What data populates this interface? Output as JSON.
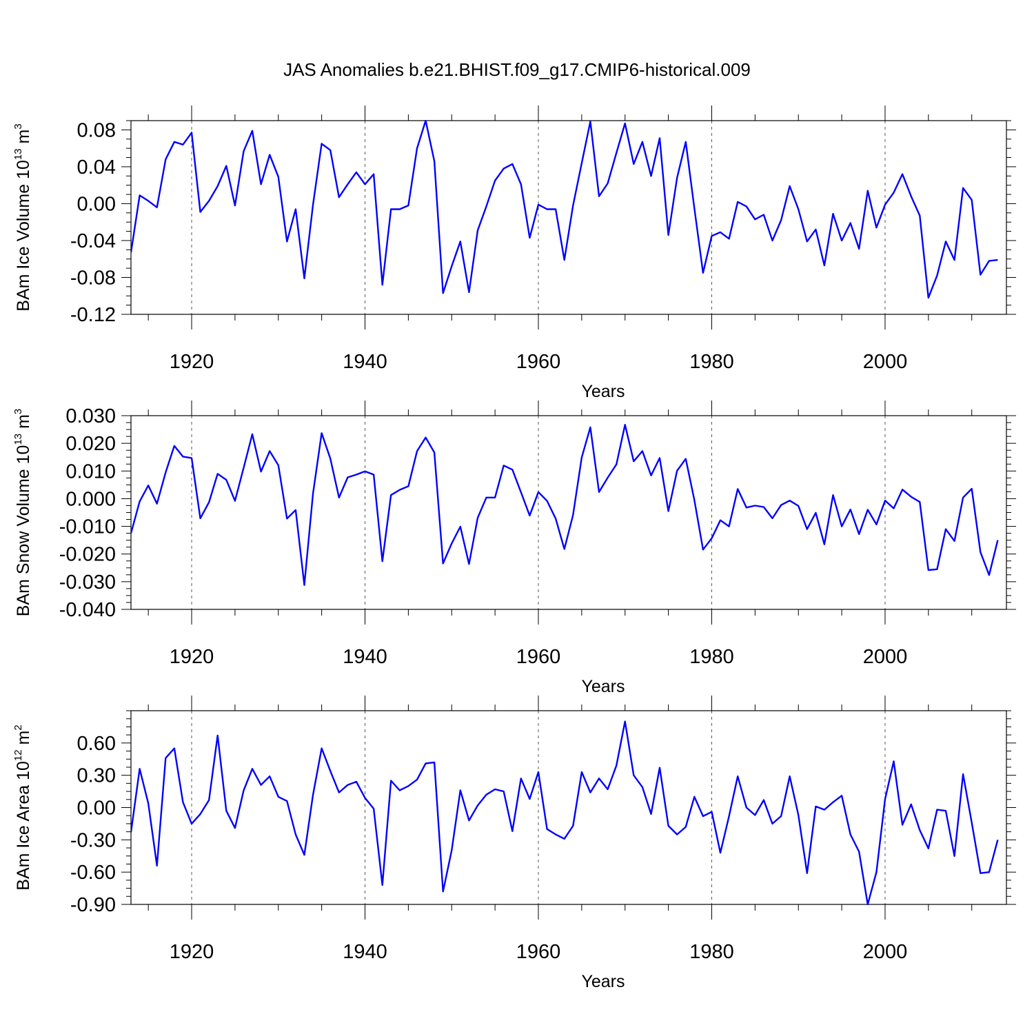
{
  "figure": {
    "title": "JAS Anomalies b.e21.BHIST.f09_g17.CMIP6-historical.009"
  },
  "chart_data": [
    {
      "type": "line",
      "name": "ice-volume",
      "ylabel": {
        "text": "BAm Ice Volume 10",
        "exp": "13",
        "unit": " m",
        "unit_exp": "3"
      },
      "xlabel": "Years",
      "xlim": [
        1913,
        2014
      ],
      "ylim": [
        -0.12,
        0.09
      ],
      "yticks": [
        -0.12,
        -0.08,
        -0.04,
        0.0,
        0.04,
        0.08
      ],
      "ytick_labels": [
        "-0.12",
        "-0.08",
        "-0.04",
        "0.00",
        "0.04",
        "0.08"
      ],
      "xticks": [
        1920,
        1940,
        1960,
        1980,
        2000
      ],
      "xtick_labels": [
        "1920",
        "1940",
        "1960",
        "1980",
        "2000"
      ],
      "start_year": 1913,
      "color": "#0000ff",
      "values": [
        -0.053,
        0.009,
        0.003,
        -0.004,
        0.048,
        0.067,
        0.064,
        0.077,
        -0.009,
        0.003,
        0.019,
        0.041,
        -0.002,
        0.057,
        0.079,
        0.021,
        0.053,
        0.029,
        -0.041,
        -0.006,
        -0.081,
        -0.001,
        0.065,
        0.058,
        0.007,
        0.021,
        0.034,
        0.021,
        0.032,
        -0.088,
        -0.006,
        -0.006,
        -0.002,
        0.06,
        0.09,
        0.046,
        -0.097,
        -0.068,
        -0.041,
        -0.096,
        -0.029,
        -0.003,
        0.025,
        0.038,
        0.043,
        0.021,
        -0.037,
        -0.001,
        -0.006,
        -0.006,
        -0.061,
        -0.002,
        0.044,
        0.089,
        0.008,
        0.022,
        0.055,
        0.087,
        0.043,
        0.067,
        0.03,
        0.071,
        -0.034,
        0.028,
        0.067,
        -0.005,
        -0.075,
        -0.035,
        -0.031,
        -0.038,
        0.002,
        -0.003,
        -0.017,
        -0.012,
        -0.04,
        -0.018,
        0.019,
        -0.006,
        -0.041,
        -0.028,
        -0.067,
        -0.011,
        -0.04,
        -0.021,
        -0.049,
        0.014,
        -0.026,
        -0.001,
        0.012,
        0.032,
        0.008,
        -0.013,
        -0.102,
        -0.078,
        -0.041,
        -0.061,
        0.017,
        0.004,
        -0.077,
        -0.062,
        -0.061
      ]
    },
    {
      "type": "line",
      "name": "snow-volume",
      "ylabel": {
        "text": "BAm Snow Volume 10",
        "exp": "13",
        "unit": " m",
        "unit_exp": "3"
      },
      "xlabel": "Years",
      "xlim": [
        1913,
        2014
      ],
      "ylim": [
        -0.04,
        0.03
      ],
      "yticks": [
        -0.04,
        -0.03,
        -0.02,
        -0.01,
        0.0,
        0.01,
        0.02,
        0.03
      ],
      "ytick_labels": [
        "-0.040",
        "-0.030",
        "-0.020",
        "-0.010",
        "0.000",
        "0.010",
        "0.020",
        "0.030"
      ],
      "xticks": [
        1920,
        1940,
        1960,
        1980,
        2000
      ],
      "xtick_labels": [
        "1920",
        "1940",
        "1960",
        "1980",
        "2000"
      ],
      "start_year": 1913,
      "color": "#0000ff",
      "values": [
        -0.0125,
        -0.001,
        0.0048,
        -0.0018,
        0.0095,
        0.0191,
        0.0152,
        0.0147,
        -0.0071,
        -0.0013,
        0.009,
        0.0068,
        -0.0008,
        0.0112,
        0.0233,
        0.0098,
        0.0172,
        0.0121,
        -0.0072,
        -0.0041,
        -0.0312,
        0.0019,
        0.0237,
        0.0145,
        0.0004,
        0.0077,
        0.0087,
        0.0099,
        0.0087,
        -0.0226,
        0.0013,
        0.0032,
        0.0045,
        0.0172,
        0.0221,
        0.0167,
        -0.0234,
        -0.0162,
        -0.0101,
        -0.0236,
        -0.0069,
        0.0004,
        0.0004,
        0.012,
        0.0105,
        0.0023,
        -0.0061,
        0.0024,
        -0.0008,
        -0.0072,
        -0.0182,
        -0.0059,
        0.0149,
        0.0258,
        0.0024,
        0.0076,
        0.0124,
        0.0267,
        0.0135,
        0.0172,
        0.0084,
        0.0147,
        -0.0045,
        0.0101,
        0.0144,
        -0.0005,
        -0.0184,
        -0.0143,
        -0.0078,
        -0.01,
        0.0035,
        -0.0032,
        -0.0025,
        -0.003,
        -0.0071,
        -0.0023,
        -0.0007,
        -0.0026,
        -0.011,
        -0.0051,
        -0.0165,
        0.0013,
        -0.01,
        -0.0039,
        -0.0128,
        -0.004,
        -0.0093,
        -0.0007,
        -0.0035,
        0.0033,
        0.0007,
        -0.0012,
        -0.0258,
        -0.0255,
        -0.011,
        -0.0153,
        0.0004,
        0.0036,
        -0.0193,
        -0.0276,
        -0.015
      ]
    },
    {
      "type": "line",
      "name": "ice-area",
      "ylabel": {
        "text": "BAm Ice Area 10",
        "exp": "12",
        "unit": " m",
        "unit_exp": "2"
      },
      "xlabel": "Years",
      "xlim": [
        1913,
        2014
      ],
      "ylim": [
        -0.9,
        0.9
      ],
      "yticks": [
        -0.9,
        -0.6,
        -0.3,
        0.0,
        0.3,
        0.6
      ],
      "ytick_labels": [
        "-0.90",
        "-0.60",
        "-0.30",
        "0.00",
        "0.30",
        "0.60"
      ],
      "xticks": [
        1920,
        1940,
        1960,
        1980,
        2000
      ],
      "xtick_labels": [
        "1920",
        "1940",
        "1960",
        "1980",
        "2000"
      ],
      "start_year": 1913,
      "color": "#0000ff",
      "values": [
        -0.23,
        0.36,
        0.04,
        -0.54,
        0.46,
        0.55,
        0.05,
        -0.15,
        -0.06,
        0.07,
        0.67,
        -0.03,
        -0.19,
        0.16,
        0.36,
        0.21,
        0.29,
        0.1,
        0.06,
        -0.25,
        -0.44,
        0.12,
        0.55,
        0.34,
        0.14,
        0.21,
        0.24,
        0.09,
        -0.01,
        -0.72,
        0.25,
        0.16,
        0.2,
        0.26,
        0.41,
        0.42,
        -0.78,
        -0.4,
        0.16,
        -0.12,
        0.02,
        0.12,
        0.17,
        0.15,
        -0.22,
        0.27,
        0.08,
        0.33,
        -0.2,
        -0.25,
        -0.29,
        -0.17,
        0.33,
        0.14,
        0.27,
        0.17,
        0.39,
        0.8,
        0.3,
        0.19,
        -0.06,
        0.37,
        -0.17,
        -0.25,
        -0.18,
        0.1,
        -0.08,
        -0.04,
        -0.42,
        -0.08,
        0.29,
        0.0,
        -0.07,
        0.07,
        -0.15,
        -0.08,
        0.29,
        -0.07,
        -0.61,
        0.01,
        -0.02,
        0.05,
        0.11,
        -0.25,
        -0.41,
        -0.9,
        -0.6,
        0.08,
        0.43,
        -0.16,
        0.03,
        -0.21,
        -0.38,
        -0.02,
        -0.03,
        -0.45,
        0.31,
        -0.14,
        -0.61,
        -0.6,
        -0.3
      ]
    }
  ]
}
